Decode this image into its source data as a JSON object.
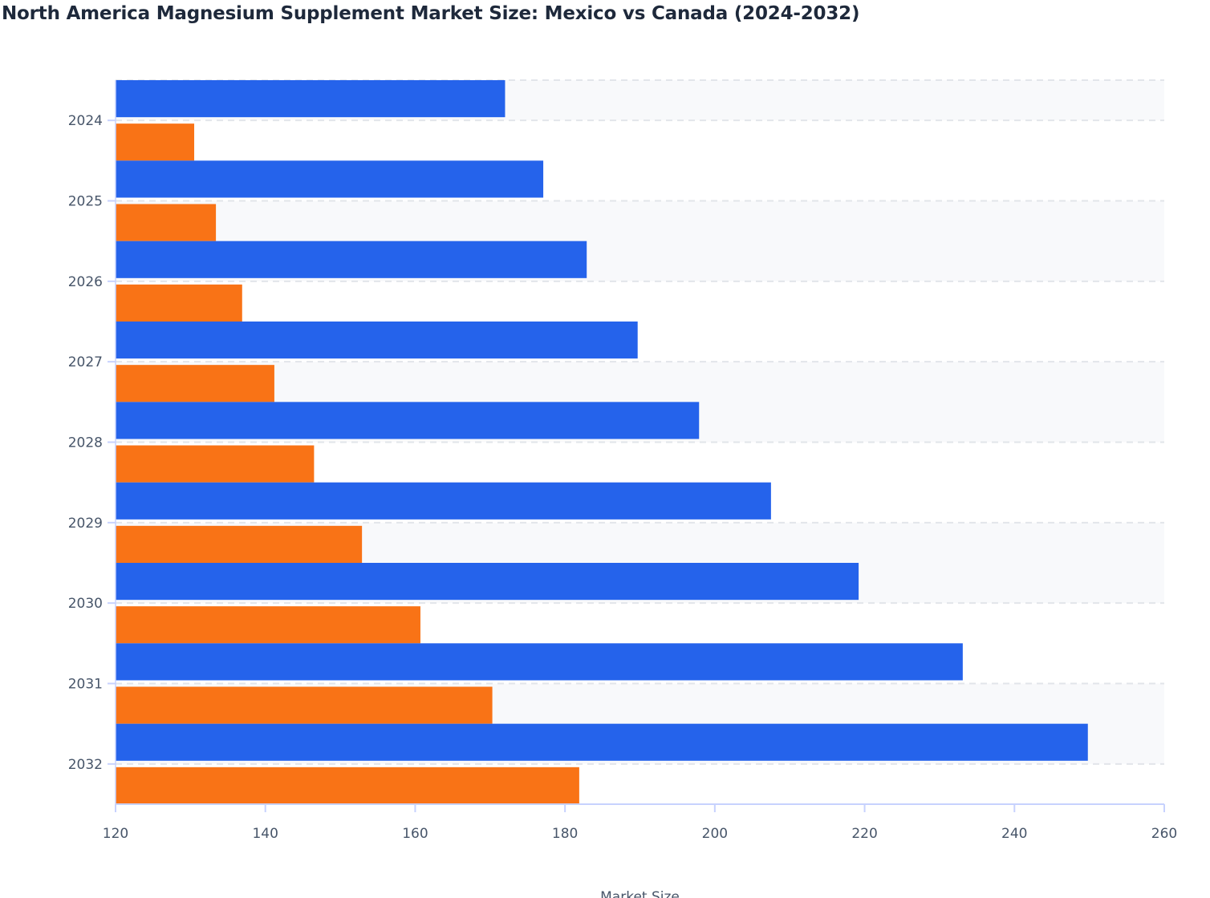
{
  "chart_data": {
    "type": "bar",
    "orientation": "horizontal",
    "title": "North America Magnesium Supplement Market Size: Mexico vs Canada (2024-2032)",
    "xlabel": "Market Size",
    "ylabel": "",
    "xlim": [
      120,
      260
    ],
    "xticks": [
      120,
      140,
      160,
      180,
      200,
      220,
      240,
      260
    ],
    "categories": [
      "2024",
      "2025",
      "2026",
      "2027",
      "2028",
      "2029",
      "2030",
      "2031",
      "2032"
    ],
    "series": [
      {
        "color": "#2563eb",
        "values": [
          172.0,
          177.1,
          182.9,
          189.7,
          197.9,
          207.5,
          219.2,
          233.1,
          249.8
        ]
      },
      {
        "color": "#f97316",
        "values": [
          130.5,
          133.4,
          136.9,
          141.2,
          146.5,
          152.9,
          160.7,
          170.3,
          181.9
        ]
      }
    ],
    "grid": "horizontal dashed",
    "legend": "none"
  }
}
